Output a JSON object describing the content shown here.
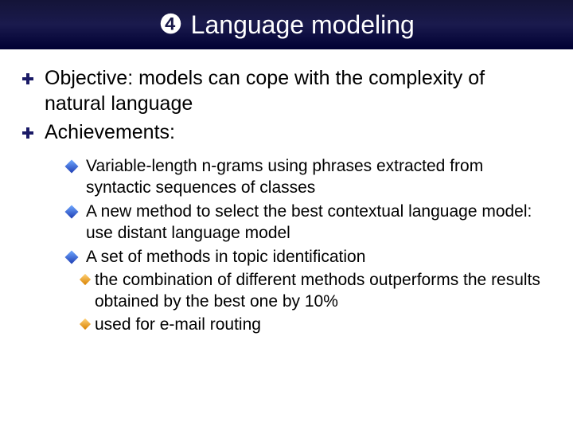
{
  "title": {
    "number_glyph": "❹",
    "text": "Language modeling"
  },
  "colors": {
    "title_bg_top": "#141438",
    "title_bg_bottom": "#000033",
    "title_text": "#ffffff",
    "body_text": "#000000",
    "bullet_l1": "#1a1a66",
    "bullet_l2_a": "#6fa8ff",
    "bullet_l2_b": "#1e3db3",
    "bullet_l3_a": "#ffd27a",
    "bullet_l3_b": "#d88200",
    "background": "#ffffff"
  },
  "typography": {
    "title_fontsize": 32,
    "l1_fontsize": 25,
    "l2_fontsize": 21,
    "l3_fontsize": 21,
    "font_family": "Arial"
  },
  "bullets_l1": [
    "Objective: models can cope with the complexity of natural language",
    "Achievements:"
  ],
  "bullets_l2": [
    "Variable-length n-grams using phrases extracted from syntactic sequences of classes",
    "A new method to select the best contextual language model: use distant language model",
    "A set of methods in topic identification"
  ],
  "bullets_l3": [
    "the combination of different methods outperforms the results obtained by the best one by 10%",
    "used for e-mail routing"
  ]
}
